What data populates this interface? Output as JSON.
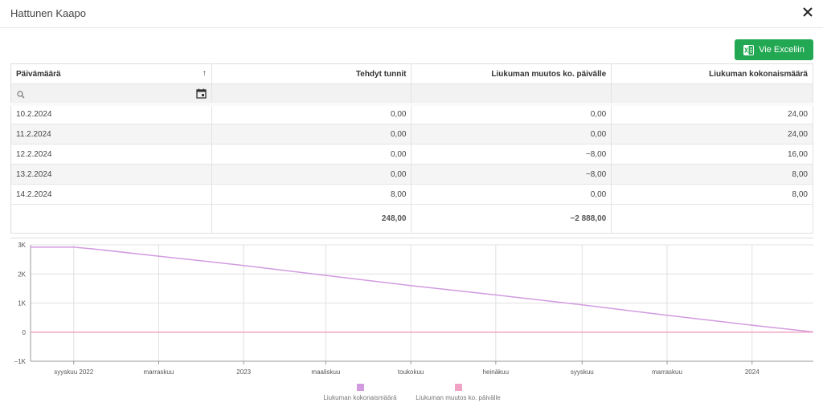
{
  "window": {
    "title": "Hattunen Kaapo"
  },
  "toolbar": {
    "excel_label": "Vie Exceliin"
  },
  "table": {
    "columns": [
      "Päivämäärä",
      "Tehdyt tunnit",
      "Liukuman muutos ko. päivälle",
      "Liukuman kokonaismäärä"
    ],
    "sort_indicator": "↑",
    "rows": [
      [
        "10.2.2024",
        "0,00",
        "0,00",
        "24,00"
      ],
      [
        "11.2.2024",
        "0,00",
        "0,00",
        "24,00"
      ],
      [
        "12.2.2024",
        "0,00",
        "−8,00",
        "16,00"
      ],
      [
        "13.2.2024",
        "0,00",
        "−8,00",
        "8,00"
      ],
      [
        "14.2.2024",
        "8,00",
        "0,00",
        "8,00"
      ]
    ],
    "totals": [
      "",
      "248,00",
      "−2 888,00",
      ""
    ]
  },
  "colors": {
    "excel_green": "#22a852",
    "series_total": "#d29be0",
    "series_change": "#f0a3c4"
  },
  "chart_data": {
    "type": "line",
    "y_ticks": [
      "3K",
      "2K",
      "1K",
      "0",
      "−1K"
    ],
    "ylim": [
      -1000,
      3000
    ],
    "x_labels": [
      "syyskuu 2022",
      "marraskuu",
      "2023",
      "maaliskuu",
      "toukokuu",
      "heinäkuu",
      "syyskuu",
      "marraskuu",
      "2024"
    ],
    "grid": true,
    "legend_position": "bottom",
    "series": [
      {
        "name": "Liukuman kokonaismäärä",
        "x": [
          "2022-08-01",
          "2022-09-01",
          "2022-09-15",
          "2022-11-01",
          "2023-01-01",
          "2023-03-01",
          "2023-05-01",
          "2023-07-01",
          "2023-09-01",
          "2023-11-01",
          "2024-01-01",
          "2024-02-14"
        ],
        "values": [
          2920,
          2920,
          2860,
          2610,
          2290,
          1950,
          1600,
          1280,
          940,
          580,
          240,
          8
        ]
      },
      {
        "name": "Liukuman muutos ko. päivälle",
        "x": [
          "2022-08-01",
          "2024-02-14"
        ],
        "values": [
          0,
          0
        ]
      }
    ]
  }
}
